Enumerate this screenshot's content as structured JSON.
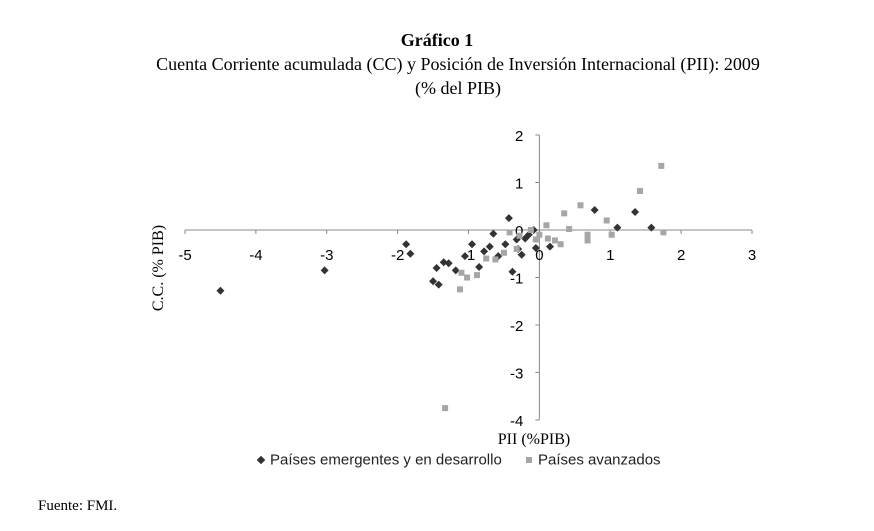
{
  "figure": {
    "number": "Gráfico 1",
    "title": "Cuenta Corriente acumulada (CC) y Posición de Inversión Internacional (PII): 2009",
    "subtitle": "(% del PIB)",
    "source": "Fuente: FMI."
  },
  "chart_data": {
    "type": "scatter",
    "xlabel": "PII (%PIB)",
    "ylabel": "C.C. (% PIB)",
    "xlim": [
      -5,
      3
    ],
    "ylim": [
      -4,
      2
    ],
    "xticks": [
      -5,
      -4,
      -3,
      -2,
      -1,
      0,
      1,
      2,
      3
    ],
    "yticks": [
      -4,
      -3,
      -2,
      -1,
      0,
      1,
      2
    ],
    "grid": false,
    "legend_position": "bottom",
    "series": [
      {
        "name": "Países emergentes y en desarrollo",
        "marker": "diamond",
        "color": "#333333",
        "points": [
          [
            -4.5,
            -1.28
          ],
          [
            -3.03,
            -0.85
          ],
          [
            -1.88,
            -0.3
          ],
          [
            -1.82,
            -0.5
          ],
          [
            -1.45,
            -0.8
          ],
          [
            -1.35,
            -0.68
          ],
          [
            -1.28,
            -0.7
          ],
          [
            -1.42,
            -1.15
          ],
          [
            -1.5,
            -1.08
          ],
          [
            -1.18,
            -0.85
          ],
          [
            -1.05,
            -0.55
          ],
          [
            -0.95,
            -0.3
          ],
          [
            -0.85,
            -0.78
          ],
          [
            -0.78,
            -0.45
          ],
          [
            -0.7,
            -0.35
          ],
          [
            -0.65,
            -0.08
          ],
          [
            -0.58,
            -0.55
          ],
          [
            -0.48,
            -0.3
          ],
          [
            -0.43,
            0.25
          ],
          [
            -0.38,
            -0.88
          ],
          [
            -0.32,
            -0.2
          ],
          [
            -0.3,
            -0.4
          ],
          [
            -0.25,
            -0.52
          ],
          [
            -0.2,
            -0.18
          ],
          [
            -0.15,
            -0.1
          ],
          [
            -0.08,
            0.0
          ],
          [
            -0.05,
            -0.38
          ],
          [
            0.15,
            -0.35
          ],
          [
            0.78,
            0.42
          ],
          [
            1.1,
            0.05
          ],
          [
            1.35,
            0.38
          ],
          [
            1.58,
            0.05
          ]
        ]
      },
      {
        "name": "Países avanzados",
        "marker": "square",
        "color": "#a6a6a6",
        "points": [
          [
            -1.33,
            -3.75
          ],
          [
            -1.12,
            -1.25
          ],
          [
            -1.02,
            -1.0
          ],
          [
            -1.1,
            -0.9
          ],
          [
            -0.88,
            -0.95
          ],
          [
            -0.75,
            -0.6
          ],
          [
            -0.62,
            -0.62
          ],
          [
            -0.5,
            -0.48
          ],
          [
            -0.42,
            -0.05
          ],
          [
            -0.32,
            -0.4
          ],
          [
            -0.28,
            -0.12
          ],
          [
            -0.12,
            0.0
          ],
          [
            -0.05,
            -0.2
          ],
          [
            0.0,
            -0.1
          ],
          [
            0.1,
            0.1
          ],
          [
            0.12,
            -0.18
          ],
          [
            0.22,
            -0.22
          ],
          [
            0.3,
            -0.3
          ],
          [
            0.35,
            0.35
          ],
          [
            0.42,
            0.02
          ],
          [
            0.58,
            0.52
          ],
          [
            0.68,
            -0.22
          ],
          [
            0.68,
            -0.1
          ],
          [
            0.95,
            0.2
          ],
          [
            1.02,
            -0.1
          ],
          [
            1.42,
            0.82
          ],
          [
            1.72,
            1.35
          ],
          [
            1.75,
            -0.05
          ]
        ]
      }
    ]
  }
}
